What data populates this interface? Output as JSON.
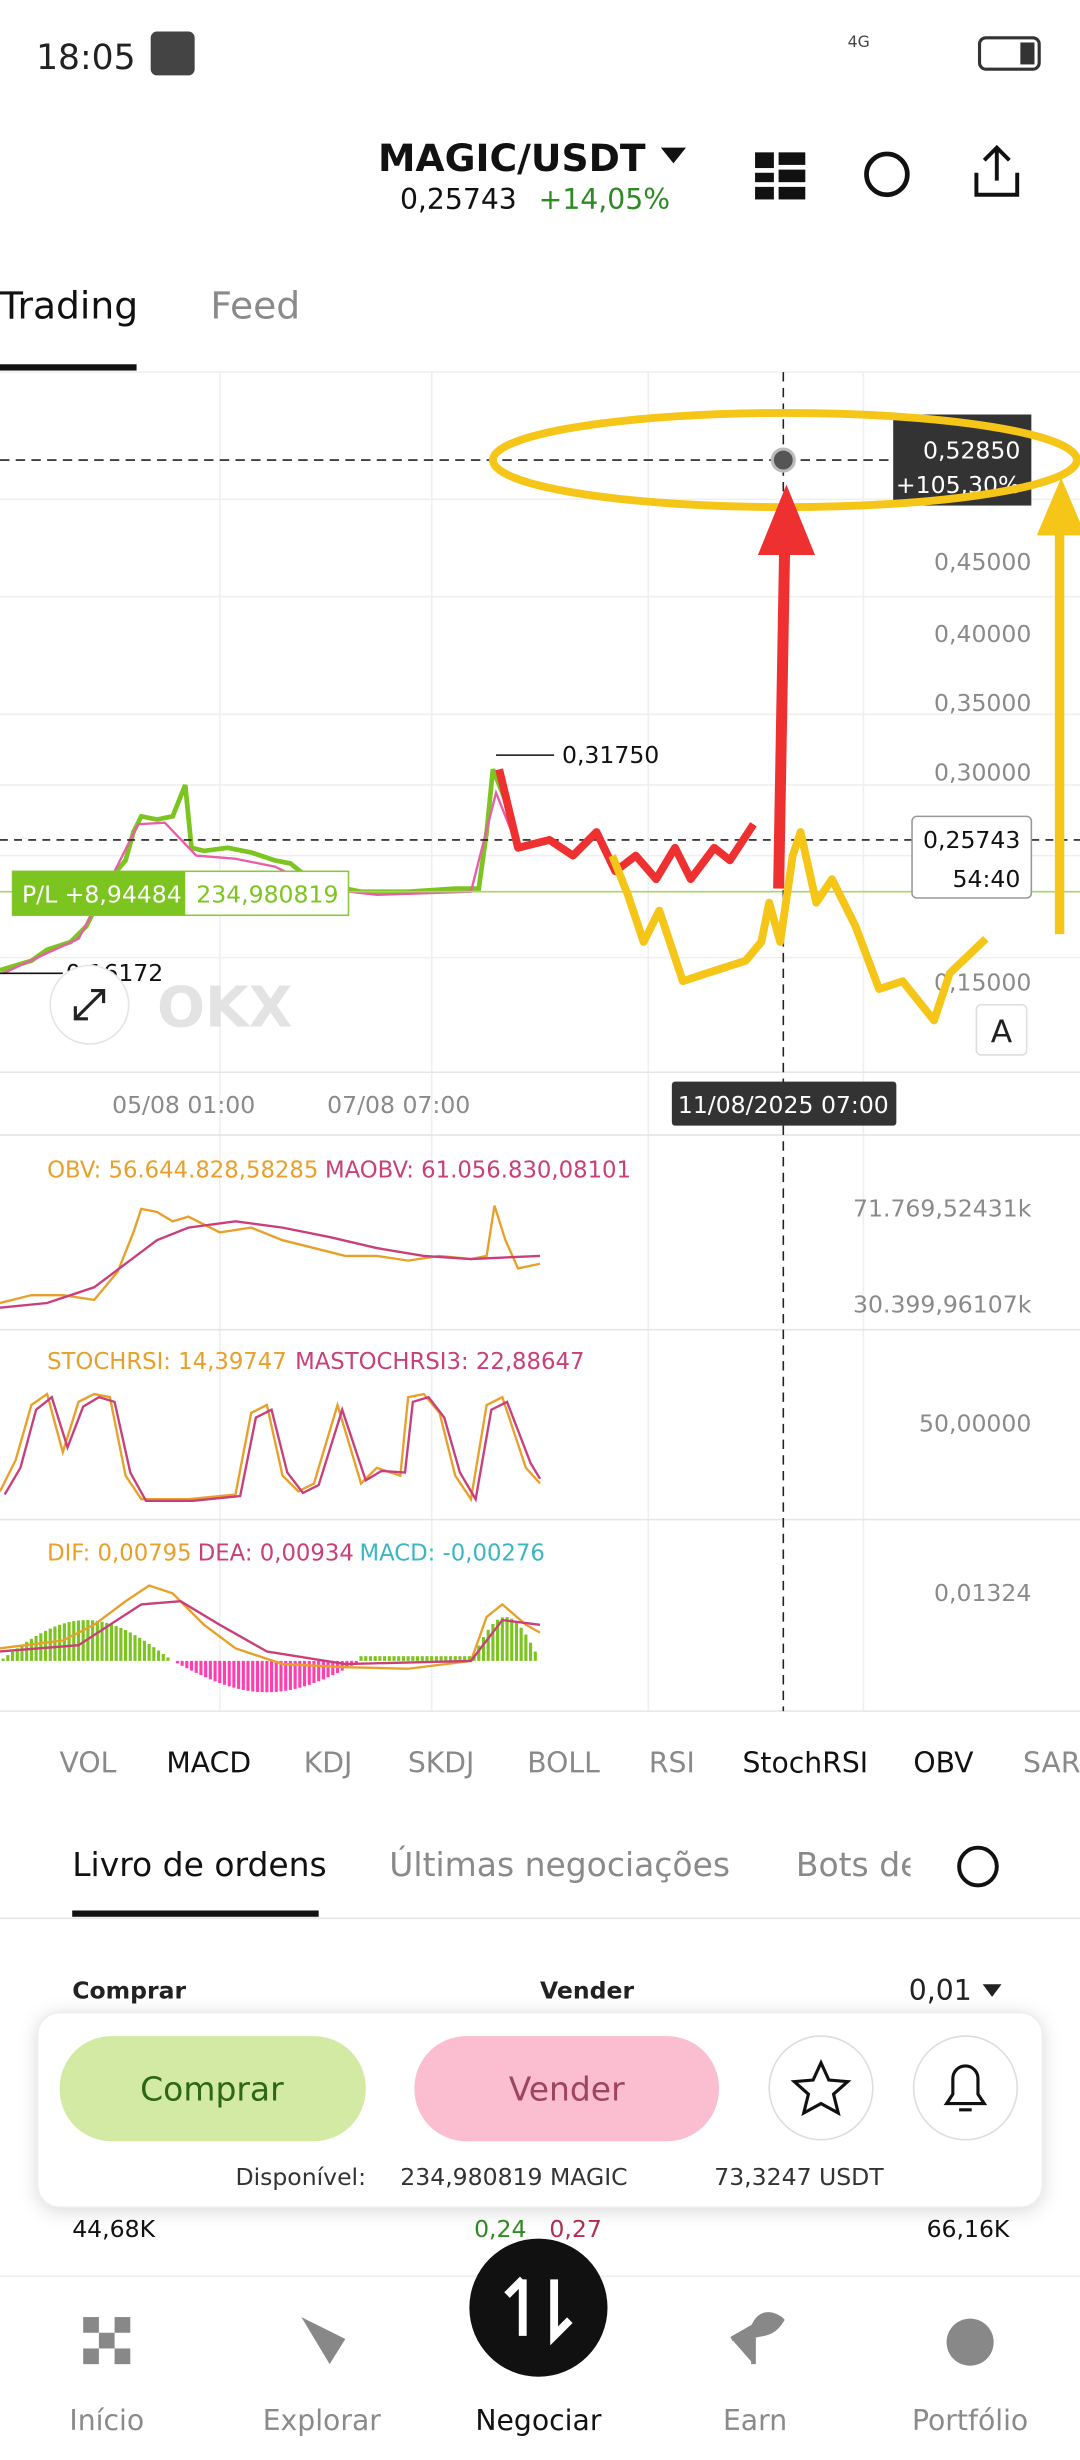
{
  "status_bar": {
    "time": "18:05",
    "network": "4G"
  },
  "header": {
    "pair": "MAGIC/USDT",
    "price": "0,25743",
    "change": "+14,05%"
  },
  "tabs": [
    "Trading",
    "Feed"
  ],
  "chart": {
    "crosshair_price": "0,52850",
    "crosshair_change": "+105,30%",
    "price_axis": [
      "0,45000",
      "0,40000",
      "0,35000",
      "0,30000",
      "0,15000"
    ],
    "current_price": "0,25743",
    "countdown": "54:40",
    "high_label": "0,31750",
    "low_label": "0,16172",
    "pl_label": "P/L +8,94484",
    "position_size": "234,980819",
    "auto_button": "A",
    "watermark": "OKX",
    "time_axis": [
      "05/08 01:00",
      "07/08 07:00"
    ],
    "crosshair_time": "11/08/2025 07:00"
  },
  "obv": {
    "obv": "OBV: 56.644.828,58285",
    "maobv": "MAOBV: 61.056.830,08101",
    "axis": [
      "71.769,52431k",
      "30.399,96107k"
    ]
  },
  "stochrsi": {
    "stochrsi": "STOCHRSI: 14,39747",
    "mastochrsi": "MASTOCHRSI3: 22,88647",
    "axis": [
      "50,00000"
    ]
  },
  "macd": {
    "dif": "DIF: 0,00795",
    "dea": "DEA: 0,00934",
    "macd": "MACD: -0,00276",
    "axis": [
      "0,01324"
    ]
  },
  "indicator_tabs": [
    "VOL",
    "MACD",
    "KDJ",
    "SKDJ",
    "BOLL",
    "RSI",
    "StochRSI",
    "OBV",
    "SAR"
  ],
  "order_tabs": [
    "Livro de ordens",
    "Últimas negociações",
    "Bots de"
  ],
  "order_book": {
    "buy_header": "Comprar",
    "sell_header": "Vender",
    "precision": "0,01",
    "row": [
      "44,68K",
      "0,24",
      "0,27",
      "66,16K"
    ]
  },
  "trade_panel": {
    "buy": "Comprar",
    "sell": "Vender",
    "available_label": "Disponível:",
    "available_base": "234,980819 MAGIC",
    "available_quote": "73,3247 USDT"
  },
  "nav": [
    "Início",
    "Explorar",
    "Negociar",
    "Earn",
    "Portfólio"
  ]
}
